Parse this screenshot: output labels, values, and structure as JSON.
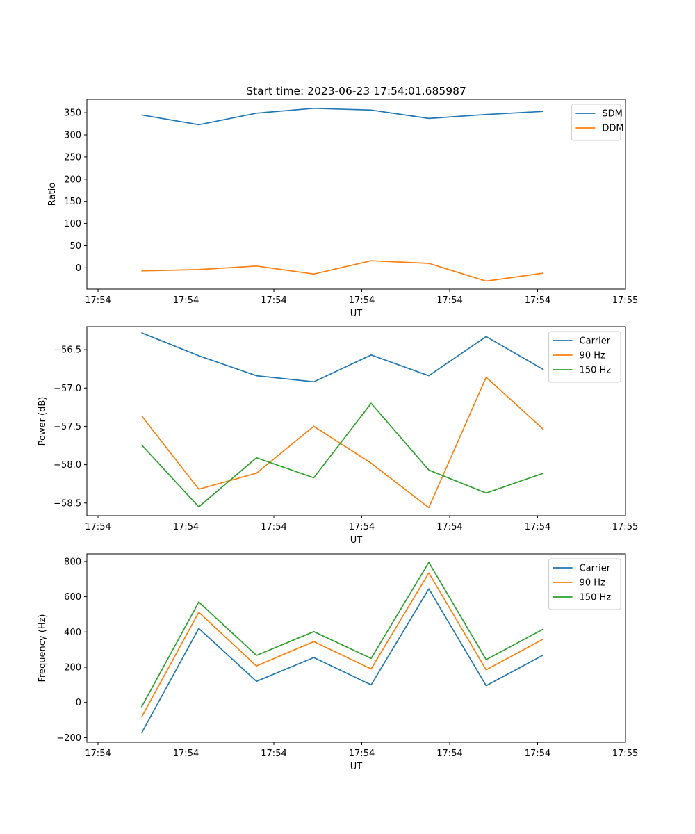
{
  "title": "Start time: 2023-06-23 17:54:01.685987",
  "chart_data": [
    {
      "type": "line",
      "title": "Start time: 2023-06-23 17:54:01.685987",
      "xlabel": "UT",
      "ylabel": "Ratio",
      "x_ticks": [
        "17:54",
        "17:54",
        "17:54",
        "17:54",
        "17:54",
        "17:54",
        "17:55"
      ],
      "y_ticks": [
        0,
        50,
        100,
        150,
        200,
        250,
        300,
        350
      ],
      "ylim": [
        -48,
        380
      ],
      "legend": "top-right",
      "series": [
        {
          "name": "SDM",
          "color": "#1f77b4",
          "values": [
            345,
            323,
            349,
            360,
            356,
            337,
            346,
            353
          ]
        },
        {
          "name": "DDM",
          "color": "#ff7f0e",
          "values": [
            -7,
            -4,
            4,
            -14,
            16,
            10,
            -30,
            -12
          ]
        }
      ]
    },
    {
      "type": "line",
      "title": "",
      "xlabel": "UT",
      "ylabel": "Power (dB)",
      "x_ticks": [
        "17:54",
        "17:54",
        "17:54",
        "17:54",
        "17:54",
        "17:54",
        "17:55"
      ],
      "y_ticks": [
        -58.5,
        -58.0,
        -57.5,
        -57.0,
        -56.5
      ],
      "y_tick_labels": [
        "−58.5",
        "−58.0",
        "−57.5",
        "−57.0",
        "−56.5"
      ],
      "ylim": [
        -58.665,
        -56.2
      ],
      "legend": "top-right",
      "series": [
        {
          "name": "Carrier",
          "color": "#1f77b4",
          "values": [
            -56.28,
            -56.58,
            -56.84,
            -56.92,
            -56.57,
            -56.84,
            -56.33,
            -56.76
          ]
        },
        {
          "name": "90 Hz",
          "color": "#ff7f0e",
          "values": [
            -57.36,
            -58.32,
            -58.11,
            -57.5,
            -57.98,
            -58.56,
            -56.86,
            -57.54
          ]
        },
        {
          "name": "150 Hz",
          "color": "#2ca02c",
          "values": [
            -57.74,
            -58.55,
            -57.91,
            -58.17,
            -57.2,
            -58.07,
            -58.37,
            -58.11
          ]
        }
      ]
    },
    {
      "type": "line",
      "title": "",
      "xlabel": "UT",
      "ylabel": "Frequency (Hz)",
      "x_ticks": [
        "17:54",
        "17:54",
        "17:54",
        "17:54",
        "17:54",
        "17:54",
        "17:55"
      ],
      "y_ticks": [
        -200,
        0,
        200,
        400,
        600,
        800
      ],
      "y_tick_labels": [
        "−200",
        "0",
        "200",
        "400",
        "600",
        "800"
      ],
      "ylim": [
        -226,
        843
      ],
      "legend": "top-right",
      "series": [
        {
          "name": "Carrier",
          "color": "#1f77b4",
          "values": [
            -175,
            420,
            120,
            255,
            100,
            645,
            95,
            270
          ]
        },
        {
          "name": "90 Hz",
          "color": "#ff7f0e",
          "values": [
            -85,
            512,
            207,
            345,
            190,
            735,
            185,
            360
          ]
        },
        {
          "name": "150 Hz",
          "color": "#2ca02c",
          "values": [
            -27,
            570,
            267,
            402,
            250,
            795,
            243,
            417
          ]
        }
      ]
    }
  ]
}
